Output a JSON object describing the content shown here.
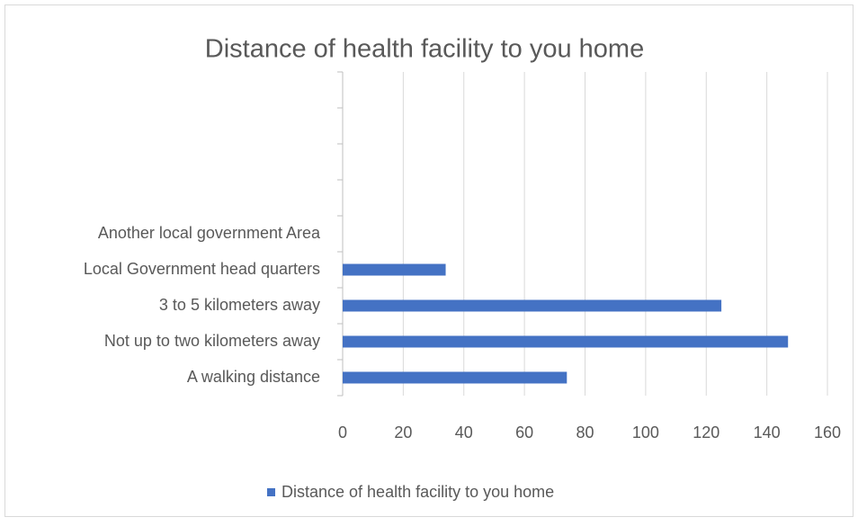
{
  "chart_data": {
    "type": "bar",
    "orientation": "horizontal",
    "title": "Distance of health facility to you home",
    "categories": [
      "A walking distance",
      "Not up to two kilometers away",
      "3 to 5 kilometers away",
      "Local Government head quarters",
      "Another local government Area",
      null,
      null,
      null,
      null
    ],
    "series": [
      {
        "name": "Distance of health facility to you home",
        "color": "#4472c4",
        "values": [
          74,
          147,
          125,
          34,
          0,
          null,
          null,
          null,
          null
        ]
      }
    ],
    "xlim": [
      0,
      160
    ],
    "xticks": [
      0,
      20,
      40,
      60,
      80,
      100,
      120,
      140,
      160
    ],
    "grid": true,
    "legend": "bottom"
  }
}
